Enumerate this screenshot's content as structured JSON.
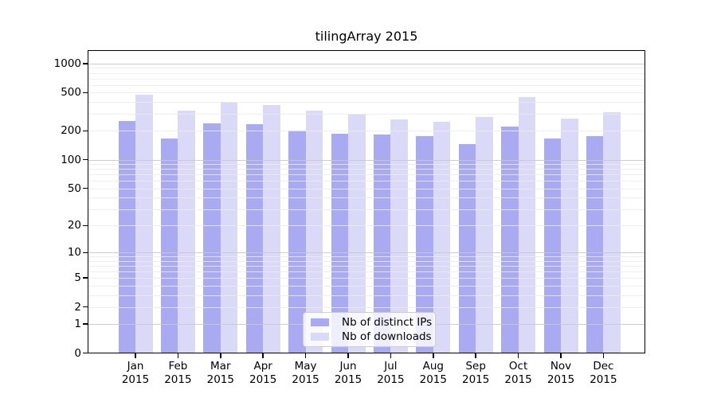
{
  "title": "tilingArray 2015",
  "chart_data": {
    "type": "bar",
    "title": "tilingArray 2015",
    "scale": "log1p",
    "categories": [
      "Jan 2015",
      "Feb 2015",
      "Mar 2015",
      "Apr 2015",
      "May 2015",
      "Jun 2015",
      "Jul 2015",
      "Aug 2015",
      "Sep 2015",
      "Oct 2015",
      "Nov 2015",
      "Dec 2015"
    ],
    "months": [
      "Jan",
      "Feb",
      "Mar",
      "Apr",
      "May",
      "Jun",
      "Jul",
      "Aug",
      "Sep",
      "Oct",
      "Nov",
      "Dec"
    ],
    "year": "2015",
    "series": [
      {
        "name": "Nb of distinct IPs",
        "key": "ips",
        "values": [
          255,
          166,
          240,
          235,
          200,
          188,
          184,
          175,
          147,
          220,
          165,
          178
        ]
      },
      {
        "name": "Nb of downloads",
        "key": "downloads",
        "values": [
          475,
          325,
          400,
          372,
          325,
          303,
          265,
          248,
          278,
          450,
          268,
          310
        ]
      }
    ],
    "yticks": [
      0,
      1,
      2,
      5,
      10,
      20,
      50,
      100,
      200,
      500,
      1000
    ],
    "ylim": [
      0,
      1380
    ],
    "grid": true,
    "legend_position": "lower center",
    "xlabel": "",
    "ylabel": ""
  },
  "colors": {
    "ips": "#aaaaf2",
    "downloads": "#dadaf8",
    "grid_major": "#c9c9c9",
    "grid_minor": "#ebebeb",
    "axis": "#000000",
    "legend_border": "#cccccc",
    "background": "#ffffff"
  },
  "legend": {
    "items": [
      {
        "label": "Nb of distinct IPs",
        "series": "ips"
      },
      {
        "label": "Nb of downloads",
        "series": "downloads"
      }
    ]
  }
}
